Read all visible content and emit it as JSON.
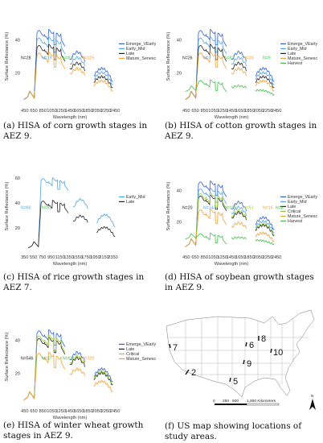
{
  "colors": {
    "emerge_vearly": "#2e5fd6",
    "early_mid": "#4fa3e3",
    "late": "#222222",
    "mature_senesc": "#f2a134",
    "critical": "#9ccc35",
    "harvest": "#3fbf4a"
  },
  "common": {
    "ylabel": "Surface Reflectance (%)",
    "xlabel": "Wavelength (nm)"
  },
  "panels": [
    {
      "id": "a",
      "caption": "(a) HISA of corn growth stages in AEZ 9.",
      "legend": [
        "Emerge_VEarly",
        "Early_Mid",
        "Late",
        "Mature_Senesc"
      ],
      "n_labels": [
        {
          "text": "N=28",
          "color": "#222222"
        },
        {
          "text": "N=19",
          "color": "#4fa3e3"
        },
        {
          "text": "N=81",
          "color": "#3fbf4a"
        },
        {
          "text": "N=125",
          "color": "#f2a134"
        }
      ],
      "chart_data": {
        "type": "line",
        "xlabel": "Wavelength (nm)",
        "ylabel": "Surface Reflectance (%)",
        "x_ticks": [
          450,
          650,
          850,
          1050,
          1250,
          1450,
          1650,
          1850,
          2050,
          2250,
          2450
        ],
        "y_ticks": [
          20,
          40
        ],
        "xlim": [
          400,
          2500
        ],
        "ylim": [
          0,
          60
        ]
      }
    },
    {
      "id": "b",
      "caption": "(b) HISA of cotton growth stages in AEZ 9.",
      "legend": [
        "Emerge_VEarly",
        "Early_Mid",
        "Late",
        "Mature_Senesc",
        "Harvest"
      ],
      "n_labels": [
        {
          "text": "N=26",
          "color": "#222222"
        },
        {
          "text": "N=7",
          "color": "#4fa3e3"
        },
        {
          "text": "N=62",
          "color": "#3fbf4a"
        },
        {
          "text": "N=20",
          "color": "#f2a134"
        },
        {
          "text": "N=9",
          "color": "#3fbf4a"
        }
      ],
      "chart_data": {
        "type": "line",
        "xlabel": "Wavelength (nm)",
        "ylabel": "Surface Reflectance (%)",
        "x_ticks": [
          450,
          650,
          850,
          1050,
          1250,
          1450,
          1650,
          1850,
          2050,
          2250,
          2450
        ],
        "y_ticks": [
          20,
          40
        ],
        "xlim": [
          400,
          2500
        ],
        "ylim": [
          0,
          60
        ]
      }
    },
    {
      "id": "c",
      "caption": "(c) HISA of rice growth stages in AEZ 7.",
      "legend": [
        "Early_Mid",
        "Late"
      ],
      "n_labels": [
        {
          "text": "N=60",
          "color": "#4fa3e3"
        },
        {
          "text": "N=51",
          "color": "#3fbf4a"
        }
      ],
      "chart_data": {
        "type": "line",
        "xlabel": "Wavelength (nm)",
        "ylabel": "Surface Reflectance (%)",
        "x_ticks": [
          350,
          550,
          750,
          950,
          1150,
          1350,
          1550,
          1750,
          1950,
          2150,
          2350
        ],
        "y_ticks": [
          20,
          40,
          60
        ],
        "xlim": [
          300,
          2450
        ],
        "ylim": [
          0,
          75
        ]
      }
    },
    {
      "id": "d",
      "caption": "(d) HISA of soybean growth stages in AEZ 9.",
      "legend": [
        "Emerge_VEarly",
        "Early_Mid",
        "Late",
        "Critical",
        "Mature_Senesc",
        "Harvest"
      ],
      "n_labels": [
        {
          "text": "N=20",
          "color": "#222222"
        },
        {
          "text": "N=143",
          "color": "#4fa3e3"
        },
        {
          "text": "N=199",
          "color": "#3fbf4a"
        },
        {
          "text": "N=51",
          "color": "#9ccc35"
        },
        {
          "text": "N=16",
          "color": "#f2a134"
        },
        {
          "text": "N=8",
          "color": "#3fbf4a"
        }
      ],
      "chart_data": {
        "type": "line",
        "xlabel": "Wavelength (nm)",
        "ylabel": "Surface Reflectance (%)",
        "x_ticks": [
          450,
          650,
          850,
          1050,
          1250,
          1450,
          1650,
          1850,
          2050,
          2250,
          2450
        ],
        "y_ticks": [
          20,
          40
        ],
        "xlim": [
          400,
          2500
        ],
        "ylim": [
          0,
          60
        ]
      }
    },
    {
      "id": "e",
      "caption": "(e) HISA of winter wheat growth stages in AEZ 9.",
      "legend": [
        "Emerge_VEarly",
        "Late",
        "Critical",
        "Mature_Senesc"
      ],
      "n_labels": [
        {
          "text": "N=546",
          "color": "#222222"
        },
        {
          "text": "N=37",
          "color": "#3fbf4a"
        },
        {
          "text": "N=61",
          "color": "#3fbf4a"
        },
        {
          "text": "N=320",
          "color": "#f2a134"
        }
      ],
      "chart_data": {
        "type": "line",
        "xlabel": "Wavelength (nm)",
        "ylabel": "Surface Reflectance (%)",
        "x_ticks": [
          450,
          650,
          850,
          1050,
          1250,
          1450,
          1650,
          1850,
          2050,
          2250,
          2450
        ],
        "y_ticks": [
          20,
          40
        ],
        "xlim": [
          400,
          2500
        ],
        "ylim": [
          0,
          60
        ]
      }
    }
  ],
  "map": {
    "caption": "(f) US map showing locations of study areas.",
    "site_labels": [
      "6",
      "8",
      "7",
      "10",
      "9",
      "2",
      "5"
    ],
    "scale_labels": [
      "0",
      "250",
      "500",
      "1,000 Kilometers"
    ],
    "north_label": "N"
  }
}
